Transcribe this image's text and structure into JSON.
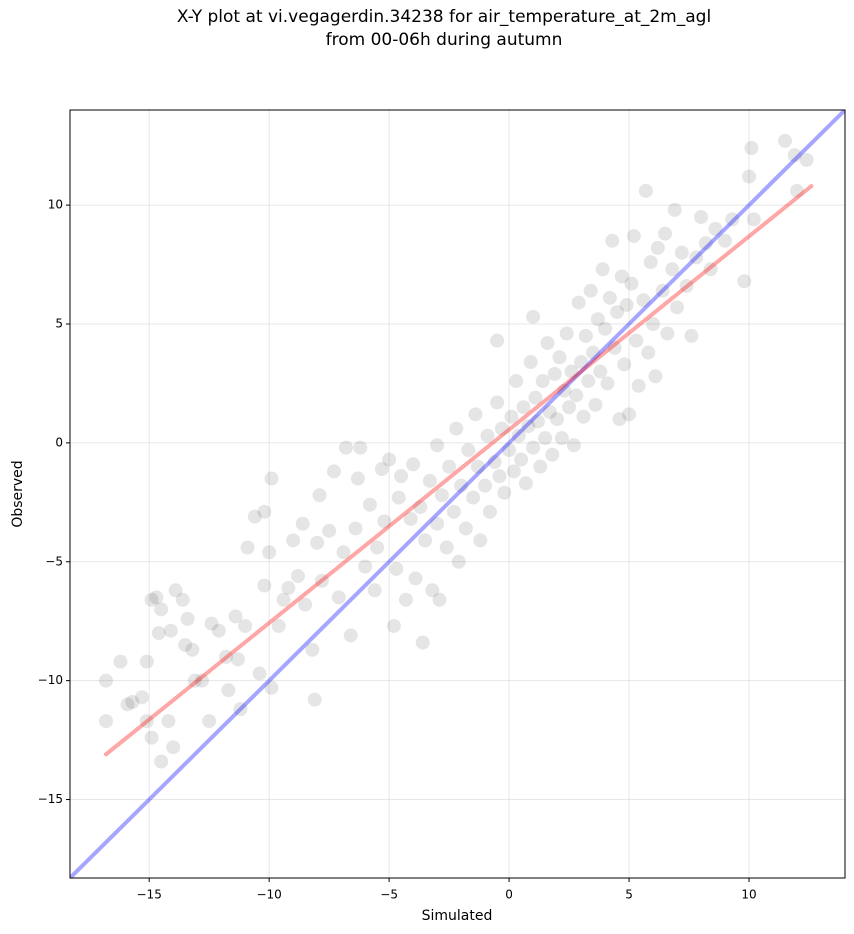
{
  "chart_data": {
    "type": "scatter",
    "title": "X-Y plot at vi.vegagerdin.34238 for air_temperature_at_2m_agl\nfrom 00-06h during autumn",
    "xlabel": "Simulated",
    "ylabel": "Observed",
    "xlim": [
      -18.3,
      14.0
    ],
    "ylim": [
      -18.3,
      14.0
    ],
    "xticks": [
      {
        "value": -15,
        "label": "−15"
      },
      {
        "value": -10,
        "label": "−10"
      },
      {
        "value": -5,
        "label": "−5"
      },
      0,
      5,
      10
    ],
    "yticks": [
      {
        "value": -15,
        "label": "−15"
      },
      {
        "value": -10,
        "label": "−10"
      },
      {
        "value": -5,
        "label": "−5"
      },
      0,
      5,
      10
    ],
    "grid": true,
    "series": [
      {
        "type": "scatter",
        "color": "#000000",
        "alpha": 0.1,
        "x": [
          -16.8,
          -16.8,
          -16.2,
          -15.9,
          -15.7,
          -15.3,
          -15.1,
          -15.1,
          -14.9,
          -14.7,
          -14.6,
          -14.5,
          -14.9,
          -14.5,
          -14.2,
          -14.0,
          -14.1,
          -13.9,
          -13.6,
          -13.5,
          -13.4,
          -13.2,
          -13.1,
          -12.8,
          -12.5,
          -12.4,
          -12.1,
          -11.8,
          -11.7,
          -11.4,
          -11.3,
          -11.2,
          -11.0,
          -10.9,
          -10.6,
          -10.4,
          -10.2,
          -10.2,
          -10.0,
          -9.9,
          -9.9,
          -9.6,
          -9.4,
          -9.2,
          -9.0,
          -8.8,
          -8.6,
          -8.5,
          -8.2,
          -8.1,
          -8.0,
          -7.9,
          -7.8,
          -7.5,
          -7.3,
          -7.1,
          -6.9,
          -6.8,
          -6.6,
          -6.4,
          -6.3,
          -6.2,
          -6.0,
          -5.8,
          -5.6,
          -5.5,
          -5.3,
          -5.2,
          -5.0,
          -4.8,
          -4.7,
          -4.6,
          -4.5,
          -4.3,
          -4.1,
          -4.0,
          -3.9,
          -3.7,
          -3.6,
          -3.5,
          -3.3,
          -3.2,
          -3.0,
          -3.0,
          -2.9,
          -2.8,
          -2.6,
          -2.5,
          -2.3,
          -2.2,
          -2.1,
          -2.0,
          -1.8,
          -1.7,
          -1.5,
          -1.4,
          -1.3,
          -1.2,
          -1.0,
          -0.9,
          -0.8,
          -0.6,
          -0.5,
          -0.4,
          -0.3,
          -0.2,
          0.0,
          0.1,
          0.2,
          0.3,
          0.4,
          0.5,
          0.6,
          0.7,
          0.8,
          0.9,
          1.0,
          1.1,
          1.2,
          1.3,
          1.4,
          1.5,
          1.6,
          1.7,
          1.8,
          1.9,
          2.0,
          2.1,
          2.2,
          2.3,
          2.4,
          2.5,
          2.6,
          2.7,
          2.8,
          2.9,
          3.0,
          3.1,
          3.2,
          3.3,
          3.4,
          3.5,
          3.6,
          3.7,
          3.8,
          3.9,
          4.0,
          4.1,
          4.2,
          4.3,
          4.4,
          4.5,
          4.6,
          4.7,
          4.8,
          4.9,
          5.0,
          5.1,
          5.2,
          5.3,
          5.4,
          5.6,
          5.7,
          5.8,
          5.9,
          6.0,
          6.1,
          6.2,
          6.4,
          6.5,
          6.6,
          6.8,
          6.9,
          7.0,
          7.2,
          7.4,
          7.6,
          7.8,
          8.0,
          8.2,
          8.4,
          8.6,
          9.0,
          9.3,
          9.8,
          10.0,
          10.1,
          10.2,
          11.5,
          11.9,
          12.0,
          12.4,
          -0.5,
          1.0
        ],
        "values": [
          -10.0,
          -11.7,
          -9.2,
          -11.0,
          -10.9,
          -10.7,
          -9.2,
          -11.7,
          -6.6,
          -6.5,
          -8.0,
          -7.0,
          -12.4,
          -13.4,
          -11.7,
          -12.8,
          -7.9,
          -6.2,
          -6.6,
          -8.5,
          -7.4,
          -8.7,
          -10.0,
          -10.0,
          -11.7,
          -7.6,
          -7.9,
          -9.0,
          -10.4,
          -7.3,
          -9.1,
          -11.2,
          -7.7,
          -4.4,
          -3.1,
          -9.7,
          -6.0,
          -2.9,
          -4.6,
          -10.3,
          -1.5,
          -7.7,
          -6.6,
          -6.1,
          -4.1,
          -5.6,
          -3.4,
          -6.8,
          -8.7,
          -10.8,
          -4.2,
          -2.2,
          -5.8,
          -3.7,
          -1.2,
          -6.5,
          -4.6,
          -0.2,
          -8.1,
          -3.6,
          -1.5,
          -0.2,
          -5.2,
          -2.6,
          -6.2,
          -4.4,
          -1.1,
          -3.3,
          -0.7,
          -7.7,
          -5.3,
          -2.3,
          -1.4,
          -6.6,
          -3.2,
          -0.9,
          -5.7,
          -2.7,
          -8.4,
          -4.1,
          -1.6,
          -6.2,
          -3.4,
          -0.1,
          -6.6,
          -2.2,
          -4.4,
          -1.0,
          -2.9,
          0.6,
          -5.0,
          -1.8,
          -3.6,
          -0.3,
          -2.3,
          1.2,
          -1.0,
          -4.1,
          -1.8,
          0.3,
          -2.9,
          -0.8,
          1.7,
          -1.4,
          0.6,
          -2.1,
          -0.3,
          1.1,
          -1.2,
          2.6,
          0.3,
          -0.7,
          1.5,
          -1.7,
          0.7,
          3.4,
          -0.2,
          1.9,
          0.9,
          -1.0,
          2.6,
          0.2,
          4.2,
          1.3,
          -0.5,
          2.9,
          1.0,
          3.6,
          0.2,
          2.2,
          4.6,
          1.5,
          3.0,
          -0.1,
          2.0,
          5.9,
          3.4,
          1.1,
          4.5,
          2.6,
          6.4,
          3.8,
          1.6,
          5.2,
          3.0,
          7.3,
          4.8,
          2.5,
          6.1,
          8.5,
          4.0,
          5.5,
          1.0,
          7.0,
          3.3,
          5.8,
          1.2,
          6.7,
          8.7,
          4.3,
          2.4,
          6.0,
          10.6,
          3.8,
          7.6,
          5.0,
          2.8,
          8.2,
          6.4,
          8.8,
          4.6,
          7.3,
          9.8,
          5.7,
          8.0,
          6.6,
          4.5,
          7.8,
          9.5,
          8.4,
          7.3,
          9.0,
          8.5,
          9.4,
          6.8,
          11.2,
          12.4,
          9.4,
          12.7,
          12.1,
          10.6,
          11.9,
          4.3,
          5.3
        ]
      },
      {
        "type": "line",
        "color": "#0000ff",
        "alpha": 0.35,
        "x": [
          -18.3,
          14.0
        ],
        "values": [
          -18.3,
          14.0
        ]
      },
      {
        "type": "line",
        "color": "#ff0000",
        "alpha": 0.35,
        "x": [
          -16.8,
          12.6
        ],
        "values": [
          -13.1,
          10.8
        ]
      }
    ]
  }
}
